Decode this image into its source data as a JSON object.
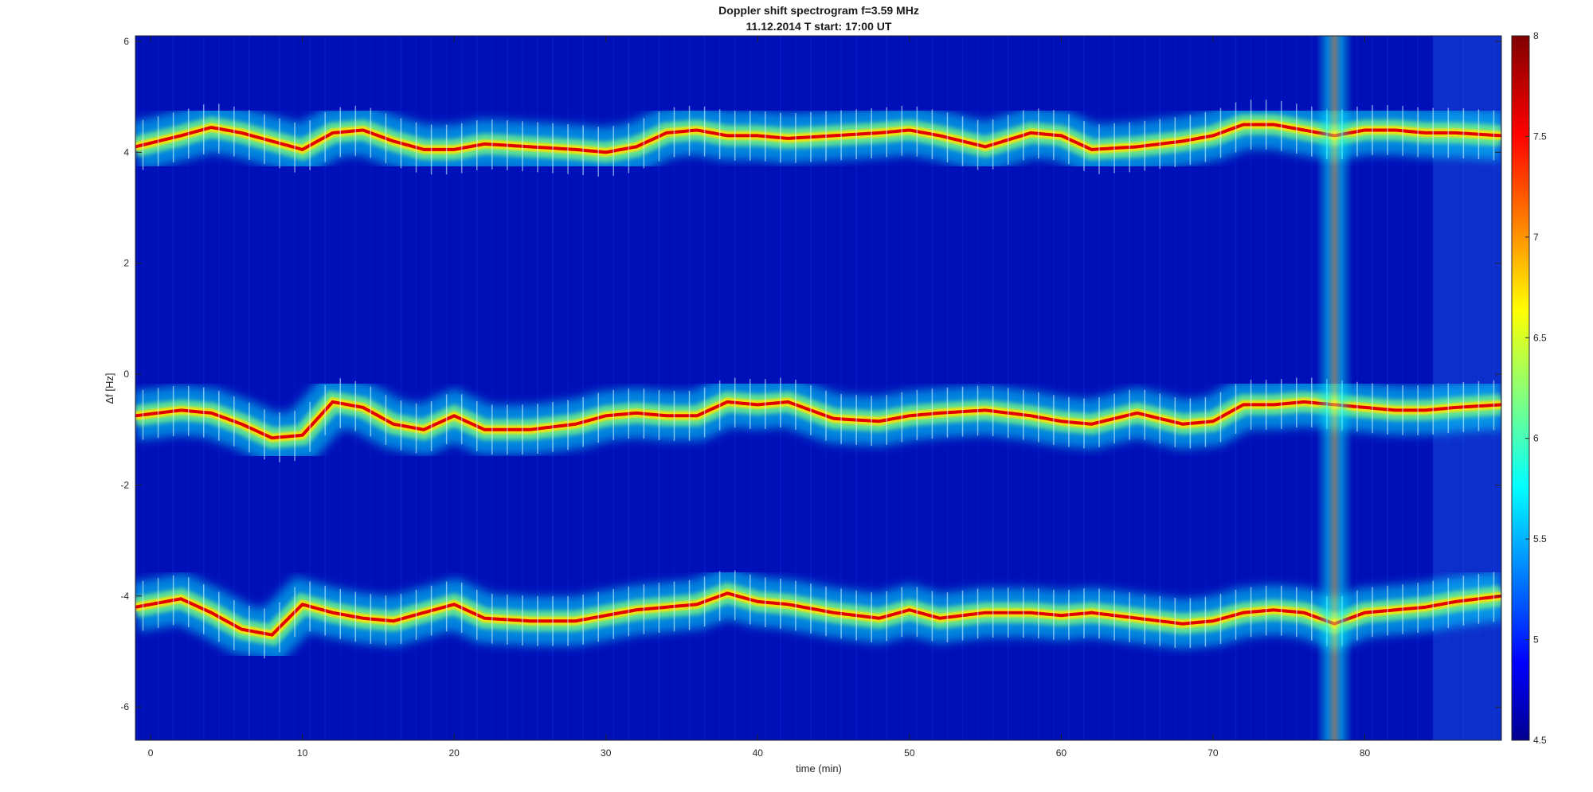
{
  "chart_data": {
    "type": "heatmap",
    "title": "Doppler shift spectrogram f=3.59 MHz",
    "subtitle": "11.12.2014   T start: 17:00 UT",
    "xlabel": "time (min)",
    "ylabel": "Δf [Hz]",
    "xlim": [
      -1,
      89
    ],
    "ylim": [
      -6.6,
      6.1
    ],
    "x_ticks": [
      0,
      10,
      20,
      30,
      40,
      50,
      60,
      70,
      80
    ],
    "y_ticks": [
      -6,
      -4,
      -2,
      0,
      2,
      4,
      6
    ],
    "colorbar": {
      "colormap": "jet",
      "clim": [
        4.5,
        8
      ],
      "ticks": [
        4.5,
        5,
        5.5,
        6,
        6.5,
        7,
        7.5,
        8
      ]
    },
    "grid": false,
    "traces": [
      {
        "x": [
          -1,
          2,
          4,
          6,
          8,
          10,
          12,
          14,
          16,
          18,
          20,
          22,
          25,
          28,
          30,
          32,
          34,
          36,
          38,
          40,
          42,
          45,
          48,
          50,
          52,
          55,
          58,
          60,
          62,
          65,
          68,
          70,
          72,
          74,
          76,
          78,
          80,
          82,
          84,
          86,
          89
        ],
        "y": [
          4.1,
          4.3,
          4.45,
          4.35,
          4.2,
          4.05,
          4.35,
          4.4,
          4.2,
          4.05,
          4.05,
          4.15,
          4.1,
          4.05,
          4.0,
          4.1,
          4.35,
          4.4,
          4.3,
          4.3,
          4.25,
          4.3,
          4.35,
          4.4,
          4.3,
          4.1,
          4.35,
          4.3,
          4.05,
          4.1,
          4.2,
          4.3,
          4.5,
          4.5,
          4.4,
          4.3,
          4.4,
          4.4,
          4.35,
          4.35,
          4.3
        ]
      },
      {
        "x": [
          -1,
          2,
          4,
          6,
          8,
          10,
          12,
          14,
          16,
          18,
          20,
          22,
          25,
          28,
          30,
          32,
          34,
          36,
          38,
          40,
          42,
          45,
          48,
          50,
          52,
          55,
          58,
          60,
          62,
          65,
          68,
          70,
          72,
          74,
          76,
          78,
          80,
          82,
          84,
          86,
          89
        ],
        "y": [
          -0.75,
          -0.65,
          -0.7,
          -0.9,
          -1.15,
          -1.1,
          -0.5,
          -0.6,
          -0.9,
          -1.0,
          -0.75,
          -1.0,
          -1.0,
          -0.9,
          -0.75,
          -0.7,
          -0.75,
          -0.75,
          -0.5,
          -0.55,
          -0.5,
          -0.8,
          -0.85,
          -0.75,
          -0.7,
          -0.65,
          -0.75,
          -0.85,
          -0.9,
          -0.7,
          -0.9,
          -0.85,
          -0.55,
          -0.55,
          -0.5,
          -0.55,
          -0.6,
          -0.65,
          -0.65,
          -0.6,
          -0.55
        ]
      },
      {
        "x": [
          -1,
          2,
          4,
          6,
          8,
          10,
          12,
          14,
          16,
          18,
          20,
          22,
          25,
          28,
          30,
          32,
          34,
          36,
          38,
          40,
          42,
          45,
          48,
          50,
          52,
          55,
          58,
          60,
          62,
          65,
          68,
          70,
          72,
          74,
          76,
          78,
          80,
          82,
          84,
          86,
          89
        ],
        "y": [
          -4.2,
          -4.05,
          -4.3,
          -4.6,
          -4.7,
          -4.15,
          -4.3,
          -4.4,
          -4.45,
          -4.3,
          -4.15,
          -4.4,
          -4.45,
          -4.45,
          -4.35,
          -4.25,
          -4.2,
          -4.15,
          -3.95,
          -4.1,
          -4.15,
          -4.3,
          -4.4,
          -4.25,
          -4.4,
          -4.3,
          -4.3,
          -4.35,
          -4.3,
          -4.4,
          -4.5,
          -4.45,
          -4.3,
          -4.25,
          -4.3,
          -4.5,
          -4.3,
          -4.25,
          -4.2,
          -4.1,
          -4.0
        ]
      }
    ],
    "bursts": [
      {
        "x": [
          76.8,
          79.2
        ]
      }
    ],
    "noise_columns": [
      {
        "x": [
          84.5,
          89
        ]
      }
    ]
  }
}
